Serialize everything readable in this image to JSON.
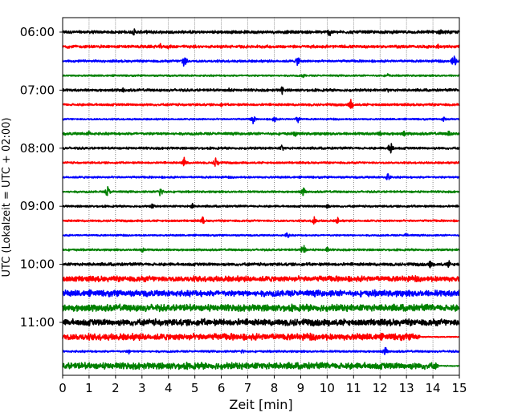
{
  "chart_data": {
    "type": "line",
    "title": "",
    "xlabel": "Zeit  [min]",
    "ylabel": "UTC (Lokalzeit = UTC + 02:00)",
    "xlim": [
      0,
      15
    ],
    "x_ticks": [
      "0",
      "1",
      "2",
      "3",
      "4",
      "5",
      "6",
      "7",
      "8",
      "9",
      "10",
      "11",
      "12",
      "13",
      "14",
      "15"
    ],
    "y_ticks": [
      "06:00",
      "07:00",
      "08:00",
      "09:00",
      "10:00",
      "11:00"
    ],
    "grid": "vertical dotted at each minute",
    "row_minutes": 15,
    "trace_colors": [
      "#000000",
      "#ff0000",
      "#0000ff",
      "#008000"
    ],
    "rows": [
      {
        "start": "06:00",
        "color": "#000000",
        "amplitude": 0.18,
        "events": [
          {
            "x": 2.7,
            "a": 0.6
          },
          {
            "x": 10.1,
            "a": 0.9
          },
          {
            "x": 14.3,
            "a": 0.7
          }
        ]
      },
      {
        "start": "06:15",
        "color": "#ff0000",
        "amplitude": 0.18,
        "events": [
          {
            "x": 3.7,
            "a": 0.5
          },
          {
            "x": 4.0,
            "a": 0.4
          },
          {
            "x": 14.2,
            "a": 0.4
          }
        ]
      },
      {
        "start": "06:30",
        "color": "#0000ff",
        "amplitude": 0.14,
        "events": [
          {
            "x": 4.6,
            "a": 1.4
          },
          {
            "x": 8.9,
            "a": 1.0
          },
          {
            "x": 14.8,
            "a": 1.3
          }
        ]
      },
      {
        "start": "06:45",
        "color": "#008000",
        "amplitude": 0.1,
        "events": [
          {
            "x": 9.1,
            "a": 0.4
          },
          {
            "x": 12.3,
            "a": 0.4
          }
        ]
      },
      {
        "start": "07:00",
        "color": "#000000",
        "amplitude": 0.16,
        "events": [
          {
            "x": 2.3,
            "a": 0.5
          },
          {
            "x": 6.3,
            "a": 0.5
          },
          {
            "x": 8.3,
            "a": 0.7
          },
          {
            "x": 12.3,
            "a": 0.4
          }
        ]
      },
      {
        "start": "07:15",
        "color": "#ff0000",
        "amplitude": 0.14,
        "events": [
          {
            "x": 10.9,
            "a": 1.0
          },
          {
            "x": 6.0,
            "a": 0.3
          }
        ]
      },
      {
        "start": "07:30",
        "color": "#0000ff",
        "amplitude": 0.1,
        "events": [
          {
            "x": 7.2,
            "a": 0.8
          },
          {
            "x": 8.0,
            "a": 0.6
          },
          {
            "x": 8.9,
            "a": 0.7
          },
          {
            "x": 14.4,
            "a": 0.5
          }
        ]
      },
      {
        "start": "07:45",
        "color": "#008000",
        "amplitude": 0.16,
        "events": [
          {
            "x": 1.0,
            "a": 0.5
          },
          {
            "x": 8.8,
            "a": 0.6
          },
          {
            "x": 12.0,
            "a": 0.5
          },
          {
            "x": 12.9,
            "a": 0.5
          },
          {
            "x": 14.6,
            "a": 0.5
          }
        ]
      },
      {
        "start": "08:00",
        "color": "#000000",
        "amplitude": 0.14,
        "events": [
          {
            "x": 8.3,
            "a": 0.6
          },
          {
            "x": 12.4,
            "a": 1.2
          }
        ]
      },
      {
        "start": "08:15",
        "color": "#ff0000",
        "amplitude": 0.12,
        "events": [
          {
            "x": 4.6,
            "a": 0.9
          },
          {
            "x": 5.8,
            "a": 1.1
          }
        ]
      },
      {
        "start": "08:30",
        "color": "#0000ff",
        "amplitude": 0.12,
        "events": [
          {
            "x": 12.3,
            "a": 0.8
          }
        ]
      },
      {
        "start": "08:45",
        "color": "#008000",
        "amplitude": 0.12,
        "events": [
          {
            "x": 1.7,
            "a": 1.0
          },
          {
            "x": 3.7,
            "a": 1.0
          },
          {
            "x": 9.1,
            "a": 0.8
          }
        ]
      },
      {
        "start": "09:00",
        "color": "#000000",
        "amplitude": 0.12,
        "events": [
          {
            "x": 3.4,
            "a": 0.5
          },
          {
            "x": 4.9,
            "a": 0.5
          },
          {
            "x": 10.0,
            "a": 0.6
          }
        ]
      },
      {
        "start": "09:15",
        "color": "#ff0000",
        "amplitude": 0.12,
        "events": [
          {
            "x": 5.3,
            "a": 0.7
          },
          {
            "x": 9.5,
            "a": 0.8
          },
          {
            "x": 10.4,
            "a": 0.6
          }
        ]
      },
      {
        "start": "09:30",
        "color": "#0000ff",
        "amplitude": 0.1,
        "events": [
          {
            "x": 8.5,
            "a": 0.6
          },
          {
            "x": 13.0,
            "a": 0.5
          }
        ]
      },
      {
        "start": "09:45",
        "color": "#008000",
        "amplitude": 0.12,
        "events": [
          {
            "x": 3.0,
            "a": 0.6
          },
          {
            "x": 9.1,
            "a": 1.0
          },
          {
            "x": 10.0,
            "a": 0.5
          }
        ]
      },
      {
        "start": "10:00",
        "color": "#000000",
        "amplitude": 0.18,
        "events": [
          {
            "x": 13.9,
            "a": 0.7
          },
          {
            "x": 14.6,
            "a": 0.7
          }
        ]
      },
      {
        "start": "10:15",
        "color": "#ff0000",
        "amplitude": 0.34,
        "events": [
          {
            "x": 0.5,
            "a": 0.5
          },
          {
            "x": 3.2,
            "a": 0.4
          },
          {
            "x": 7.0,
            "a": 0.4
          }
        ]
      },
      {
        "start": "10:30",
        "color": "#0000ff",
        "amplitude": 0.38,
        "events": [
          {
            "x": 9.2,
            "a": 0.4
          }
        ]
      },
      {
        "start": "10:45",
        "color": "#008000",
        "amplitude": 0.42,
        "events": [
          {
            "x": 0.8,
            "a": 0.5
          }
        ]
      },
      {
        "start": "11:00",
        "color": "#000000",
        "amplitude": 0.4,
        "events": [
          {
            "x": 8.8,
            "a": 0.6
          }
        ]
      },
      {
        "start": "11:15",
        "color": "#ff0000",
        "amplitude": 0.4,
        "events": [
          {
            "x": 8.5,
            "a": 0.5
          }
        ],
        "quiet_after": 13.5
      },
      {
        "start": "11:30",
        "color": "#0000ff",
        "amplitude": 0.12,
        "events": [
          {
            "x": 2.5,
            "a": 0.5
          },
          {
            "x": 6.8,
            "a": 0.5
          },
          {
            "x": 12.2,
            "a": 0.8
          }
        ]
      },
      {
        "start": "11:45",
        "color": "#008000",
        "amplitude": 0.4,
        "events": [
          {
            "x": 1.6,
            "a": 0.4
          }
        ],
        "quiet_after": 14.2
      }
    ]
  }
}
